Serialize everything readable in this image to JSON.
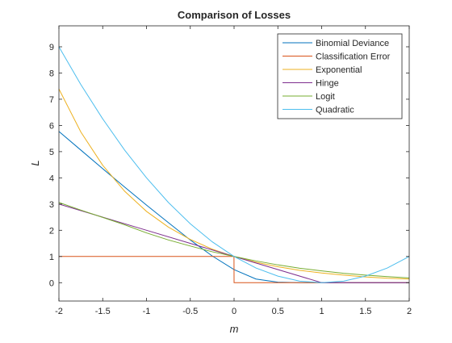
{
  "chart_data": {
    "type": "line",
    "title": "Comparison of Losses",
    "xlabel": "m",
    "ylabel": "L",
    "xlim": [
      -2,
      2
    ],
    "ylim": [
      -0.7,
      9.8
    ],
    "xticks": [
      -2,
      -1.5,
      -1,
      -0.5,
      0,
      0.5,
      1,
      1.5,
      2
    ],
    "xtick_labels": [
      "-2",
      "-1.5",
      "-1",
      "-0.5",
      "0",
      "0.5",
      "1",
      "1.5",
      "2"
    ],
    "yticks": [
      0,
      1,
      2,
      3,
      4,
      5,
      6,
      7,
      8,
      9
    ],
    "ytick_labels": [
      "0",
      "1",
      "2",
      "3",
      "4",
      "5",
      "6",
      "7",
      "8",
      "9"
    ],
    "grid": false,
    "legend_position": "top-right",
    "series": [
      {
        "name": "Binomial Deviance",
        "color": "#0072BD",
        "x": [
          -2,
          -1.75,
          -1.5,
          -1.25,
          -1,
          -0.75,
          -0.5,
          -0.25,
          0,
          0.25,
          0.5,
          0.75,
          1,
          1.25,
          1.5,
          1.75,
          2
        ],
        "y": [
          5.77,
          5.06,
          4.35,
          3.65,
          2.96,
          2.29,
          1.63,
          1.02,
          0.5,
          0.14,
          0.02,
          0.0,
          0.0,
          0.0,
          0.0,
          0.0,
          0.0
        ]
      },
      {
        "name": "Classification Error",
        "color": "#D95319",
        "x": [
          -2,
          -0.001,
          0,
          2
        ],
        "y": [
          1,
          1,
          0,
          0
        ]
      },
      {
        "name": "Exponential",
        "color": "#EDB120",
        "x": [
          -2,
          -1.75,
          -1.5,
          -1.25,
          -1,
          -0.75,
          -0.5,
          -0.25,
          0,
          0.25,
          0.5,
          0.75,
          1,
          1.25,
          1.5,
          1.75,
          2
        ],
        "y": [
          7.39,
          5.75,
          4.48,
          3.49,
          2.72,
          2.12,
          1.65,
          1.28,
          1.0,
          0.78,
          0.61,
          0.47,
          0.37,
          0.29,
          0.22,
          0.17,
          0.14
        ]
      },
      {
        "name": "Hinge",
        "color": "#7E2F8E",
        "x": [
          -2,
          -1,
          0,
          1,
          1.5,
          2
        ],
        "y": [
          3,
          2,
          1,
          0,
          0,
          0
        ]
      },
      {
        "name": "Logit",
        "color": "#77AC30",
        "x": [
          -2,
          -1.75,
          -1.5,
          -1.25,
          -1,
          -0.75,
          -0.5,
          -0.25,
          0,
          0.25,
          0.5,
          0.75,
          1,
          1.25,
          1.5,
          1.75,
          2
        ],
        "y": [
          3.06,
          2.77,
          2.49,
          2.21,
          1.9,
          1.63,
          1.4,
          1.18,
          1.0,
          0.83,
          0.68,
          0.55,
          0.45,
          0.36,
          0.29,
          0.23,
          0.18
        ]
      },
      {
        "name": "Quadratic",
        "color": "#4DBEEE",
        "x": [
          -2,
          -1.75,
          -1.5,
          -1.25,
          -1,
          -0.75,
          -0.5,
          -0.25,
          0,
          0.25,
          0.5,
          0.75,
          1,
          1.25,
          1.5,
          1.75,
          2
        ],
        "y": [
          9.0,
          7.56,
          6.25,
          5.06,
          4.0,
          3.06,
          2.25,
          1.56,
          1.0,
          0.56,
          0.25,
          0.06,
          0.0,
          0.06,
          0.25,
          0.56,
          1.0
        ]
      }
    ]
  }
}
